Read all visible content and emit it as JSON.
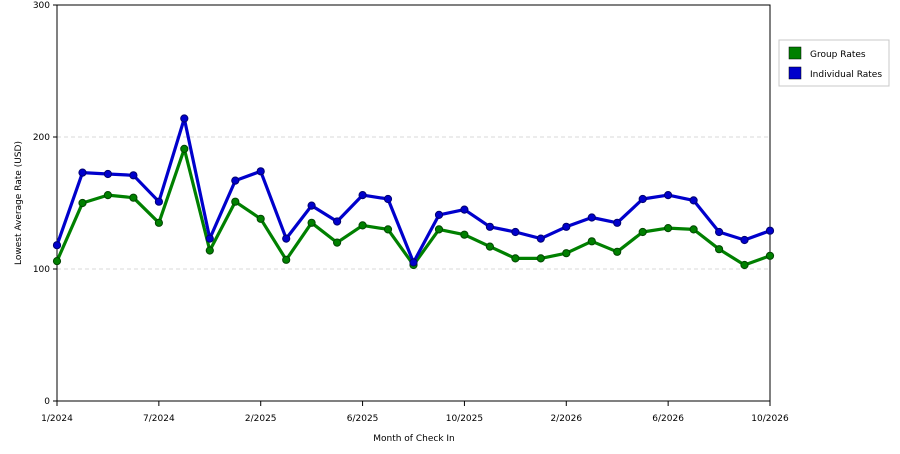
{
  "chart_data": {
    "type": "line",
    "title": "",
    "xlabel": "Month of Check In",
    "ylabel": "Lowest Average Rate (USD)",
    "ylim": [
      0,
      300
    ],
    "yticks": [
      0,
      100,
      200,
      300
    ],
    "grid": true,
    "legend_position": "top-right",
    "x_ticks": [
      {
        "index": 0,
        "label": "1/2024"
      },
      {
        "index": 4,
        "label": "7/2024"
      },
      {
        "index": 8,
        "label": "2/2025"
      },
      {
        "index": 12,
        "label": "6/2025"
      },
      {
        "index": 16,
        "label": "10/2025"
      },
      {
        "index": 20,
        "label": "2/2026"
      },
      {
        "index": 24,
        "label": "6/2026"
      },
      {
        "index": 28,
        "label": "10/2026"
      }
    ],
    "series": [
      {
        "name": "Group Rates",
        "color": "#008000",
        "values": [
          106,
          150,
          156,
          154,
          135,
          191,
          114,
          151,
          138,
          107,
          135,
          120,
          133,
          130,
          103,
          130,
          126,
          117,
          108,
          108,
          112,
          121,
          113,
          128,
          131,
          130,
          115,
          103,
          110
        ]
      },
      {
        "name": "Individual Rates",
        "color": "#0000CC",
        "values": [
          118,
          173,
          172,
          171,
          151,
          214,
          123,
          167,
          174,
          123,
          148,
          136,
          156,
          153,
          105,
          141,
          145,
          132,
          128,
          123,
          132,
          139,
          135,
          153,
          156,
          152,
          128,
          122,
          129
        ]
      }
    ]
  }
}
